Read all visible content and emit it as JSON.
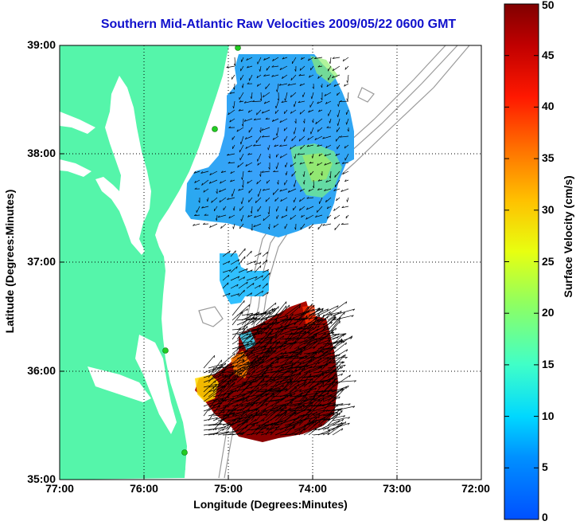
{
  "title": "Southern Mid-Atlantic Raw Velocities 2009/05/22 0600 GMT",
  "x_axis": {
    "label": "Longitude (Degrees:Minutes)",
    "ticks": [
      "77:00",
      "76:00",
      "75:00",
      "74:00",
      "73:00",
      "72:00"
    ]
  },
  "y_axis": {
    "label": "Latitude (Degrees:Minutes)",
    "ticks": [
      "39:00",
      "38:00",
      "37:00",
      "36:00",
      "35:00"
    ]
  },
  "colorbar": {
    "label": "Surface Velocity (cm/s)",
    "ticks": [
      "50",
      "45",
      "40",
      "35",
      "30",
      "25",
      "20",
      "15",
      "10",
      "5",
      "0"
    ],
    "min": 0,
    "max": 50,
    "colormap": "jet"
  },
  "map": {
    "lon_range": [
      -77,
      -72
    ],
    "lat_range": [
      35,
      39
    ],
    "grid": true,
    "land_color": "#55f5aa",
    "bathymetry_contour_color": "#9a9a9a",
    "vector_color": "#000000",
    "station_marker_color": "#22cc22"
  }
}
